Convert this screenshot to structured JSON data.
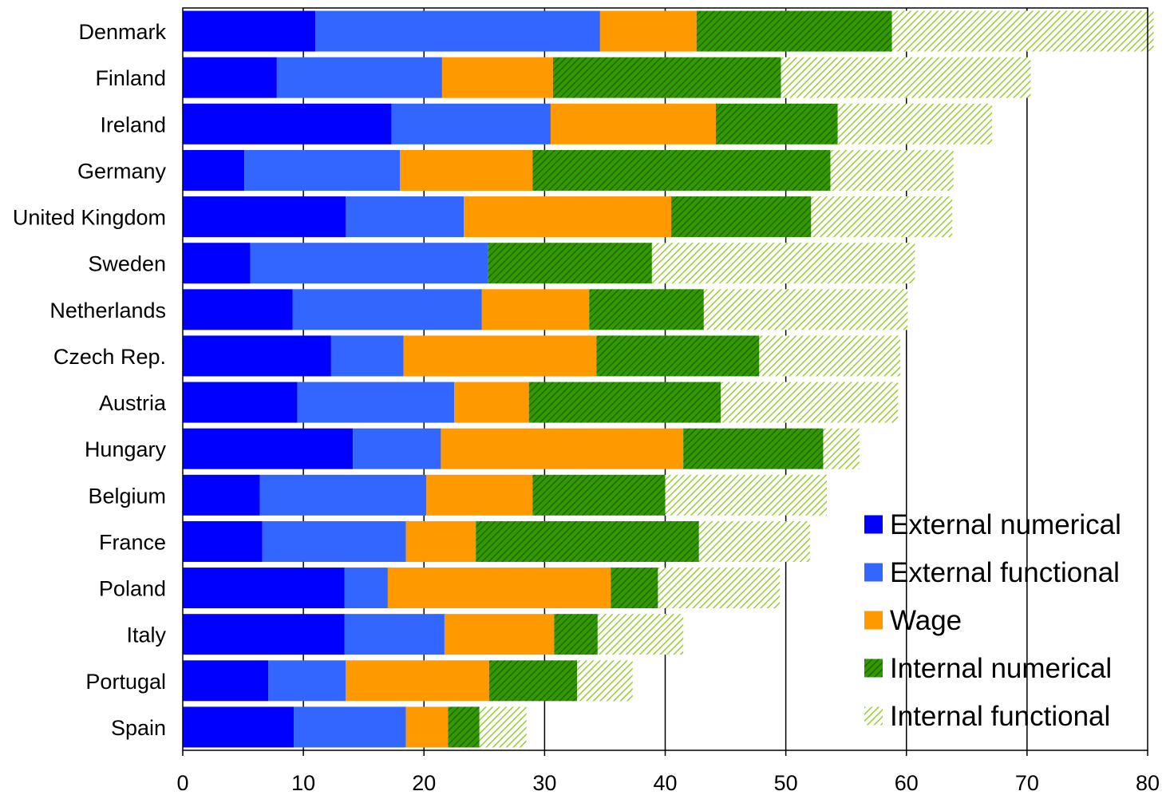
{
  "chart_data": {
    "type": "bar",
    "orientation": "horizontal",
    "stacked": true,
    "title": "",
    "xlabel": "",
    "ylabel": "",
    "xlim": [
      0,
      80
    ],
    "xticks": [
      0,
      10,
      20,
      30,
      40,
      50,
      60,
      70,
      80
    ],
    "grid": "vertical",
    "legend_position": "bottom-right",
    "categories": [
      "Denmark",
      "Finland",
      "Ireland",
      "Germany",
      "United Kingdom",
      "Sweden",
      "Netherlands",
      "Czech Rep.",
      "Austria",
      "Hungary",
      "Belgium",
      "France",
      "Poland",
      "Italy",
      "Portugal",
      "Spain"
    ],
    "series": [
      {
        "name": "External numerical",
        "color": "#0000ff",
        "pattern": "solid",
        "values": [
          11.0,
          7.8,
          17.3,
          5.1,
          13.5,
          5.6,
          9.1,
          12.3,
          9.5,
          14.1,
          6.4,
          6.6,
          13.4,
          13.4,
          7.1,
          9.2
        ]
      },
      {
        "name": "External functional",
        "color": "#3366ff",
        "pattern": "solid",
        "values": [
          23.6,
          13.7,
          13.2,
          12.9,
          9.8,
          19.7,
          15.7,
          6.0,
          13.0,
          7.3,
          13.8,
          11.9,
          3.6,
          8.3,
          6.4,
          9.3
        ]
      },
      {
        "name": "Wage",
        "color": "#ff9900",
        "pattern": "solid",
        "values": [
          8.0,
          9.2,
          13.7,
          11.0,
          17.2,
          0,
          8.9,
          16.0,
          6.2,
          20.1,
          8.8,
          5.8,
          18.5,
          9.1,
          11.9,
          3.5
        ]
      },
      {
        "name": "Internal numerical",
        "color": "#339900",
        "pattern": "hatch-dark",
        "values": [
          16.2,
          18.9,
          10.1,
          24.7,
          11.6,
          13.6,
          9.5,
          13.5,
          15.9,
          11.6,
          11.0,
          18.5,
          3.9,
          3.6,
          7.3,
          2.6
        ]
      },
      {
        "name": "Internal functional",
        "color": "#99cc33",
        "pattern": "hatch-light",
        "values": [
          21.7,
          20.7,
          12.8,
          10.2,
          11.7,
          21.8,
          16.9,
          11.7,
          14.7,
          3.0,
          13.4,
          9.2,
          10.1,
          7.1,
          4.6,
          3.9
        ]
      }
    ]
  }
}
